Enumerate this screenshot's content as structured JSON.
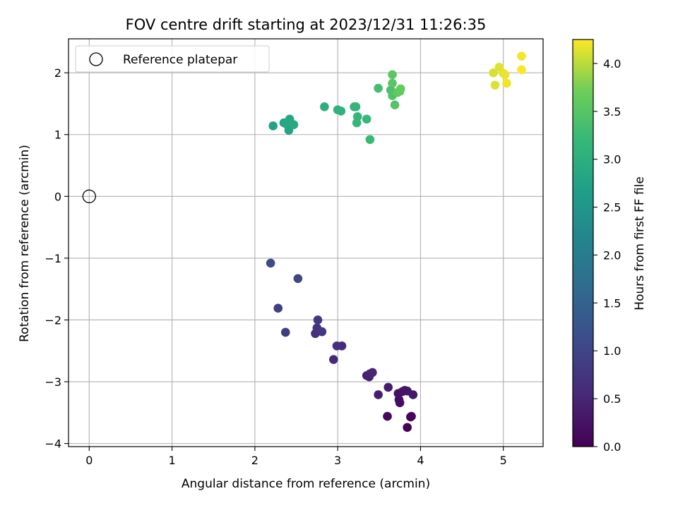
{
  "chart_data": {
    "type": "scatter",
    "title": "FOV centre drift starting at 2023/12/31 11:26:35",
    "xlabel": "Angular distance from reference (arcmin)",
    "ylabel": "Rotation from reference (arcmin)",
    "xlim": [
      -0.25,
      5.48
    ],
    "ylim": [
      -4.05,
      2.55
    ],
    "xticks": [
      0,
      1,
      2,
      3,
      4,
      5
    ],
    "xtick_labels": [
      "0",
      "1",
      "2",
      "3",
      "4",
      "5"
    ],
    "yticks": [
      -4,
      -3,
      -2,
      -1,
      0,
      1,
      2
    ],
    "ytick_labels": [
      "−4",
      "−3",
      "−2",
      "−1",
      "0",
      "1",
      "2"
    ],
    "grid": true,
    "legend": {
      "location": "top-left",
      "entries": [
        "Reference platepar"
      ]
    },
    "reference_point": {
      "x": 0,
      "y": 0,
      "marker": "hollow-circle",
      "color": "#000000"
    },
    "colorbar": {
      "label": "Hours from first FF file",
      "range": [
        0.0,
        4.25
      ],
      "ticks": [
        0.0,
        0.5,
        1.0,
        1.5,
        2.0,
        2.5,
        3.0,
        3.5,
        4.0
      ],
      "tick_labels": [
        "0.0",
        "0.5",
        "1.0",
        "1.5",
        "2.0",
        "2.5",
        "3.0",
        "3.5",
        "4.0"
      ],
      "colormap": "viridis"
    },
    "points": [
      {
        "x": 3.84,
        "y": -3.74,
        "t": 0.02
      },
      {
        "x": 3.88,
        "y": -3.57,
        "t": 0.05
      },
      {
        "x": 3.89,
        "y": -3.56,
        "t": 0.08
      },
      {
        "x": 3.6,
        "y": -3.56,
        "t": 0.11
      },
      {
        "x": 3.75,
        "y": -3.34,
        "t": 0.14
      },
      {
        "x": 3.74,
        "y": -3.29,
        "t": 0.17
      },
      {
        "x": 3.73,
        "y": -3.19,
        "t": 0.2
      },
      {
        "x": 3.78,
        "y": -3.16,
        "t": 0.23
      },
      {
        "x": 3.81,
        "y": -3.14,
        "t": 0.26
      },
      {
        "x": 3.84,
        "y": -3.15,
        "t": 0.29
      },
      {
        "x": 3.91,
        "y": -3.21,
        "t": 0.32
      },
      {
        "x": 3.61,
        "y": -3.09,
        "t": 0.35
      },
      {
        "x": 3.49,
        "y": -3.21,
        "t": 0.38
      },
      {
        "x": 3.35,
        "y": -2.9,
        "t": 0.41
      },
      {
        "x": 3.38,
        "y": -2.92,
        "t": 0.44
      },
      {
        "x": 3.39,
        "y": -2.87,
        "t": 0.47
      },
      {
        "x": 3.42,
        "y": -2.85,
        "t": 0.5
      },
      {
        "x": 2.95,
        "y": -2.64,
        "t": 0.55
      },
      {
        "x": 3.05,
        "y": -2.42,
        "t": 0.6
      },
      {
        "x": 2.99,
        "y": -2.42,
        "t": 0.64
      },
      {
        "x": 2.73,
        "y": -2.22,
        "t": 0.68
      },
      {
        "x": 2.75,
        "y": -2.13,
        "t": 0.72
      },
      {
        "x": 2.81,
        "y": -2.19,
        "t": 0.76
      },
      {
        "x": 2.76,
        "y": -2.0,
        "t": 0.8
      },
      {
        "x": 2.37,
        "y": -2.2,
        "t": 0.85
      },
      {
        "x": 2.28,
        "y": -1.81,
        "t": 0.9
      },
      {
        "x": 2.52,
        "y": -1.33,
        "t": 1.0
      },
      {
        "x": 2.19,
        "y": -1.08,
        "t": 1.1
      },
      {
        "x": 2.22,
        "y": 1.14,
        "t": 2.75
      },
      {
        "x": 2.41,
        "y": 1.07,
        "t": 2.78
      },
      {
        "x": 2.35,
        "y": 1.19,
        "t": 2.8
      },
      {
        "x": 2.38,
        "y": 1.17,
        "t": 2.82
      },
      {
        "x": 2.4,
        "y": 1.2,
        "t": 2.84
      },
      {
        "x": 2.42,
        "y": 1.25,
        "t": 2.86
      },
      {
        "x": 2.47,
        "y": 1.16,
        "t": 2.88
      },
      {
        "x": 2.84,
        "y": 1.45,
        "t": 3.0
      },
      {
        "x": 3.0,
        "y": 1.4,
        "t": 3.05
      },
      {
        "x": 3.04,
        "y": 1.38,
        "t": 3.08
      },
      {
        "x": 3.2,
        "y": 1.45,
        "t": 3.12
      },
      {
        "x": 3.22,
        "y": 1.45,
        "t": 3.14
      },
      {
        "x": 3.24,
        "y": 1.29,
        "t": 3.16
      },
      {
        "x": 3.23,
        "y": 1.19,
        "t": 3.18
      },
      {
        "x": 3.35,
        "y": 1.25,
        "t": 3.2
      },
      {
        "x": 3.39,
        "y": 0.92,
        "t": 3.22
      },
      {
        "x": 3.49,
        "y": 1.75,
        "t": 3.35
      },
      {
        "x": 3.64,
        "y": 1.72,
        "t": 3.4
      },
      {
        "x": 3.66,
        "y": 1.63,
        "t": 3.45
      },
      {
        "x": 3.69,
        "y": 1.48,
        "t": 3.48
      },
      {
        "x": 3.66,
        "y": 1.83,
        "t": 3.52
      },
      {
        "x": 3.66,
        "y": 1.97,
        "t": 3.55
      },
      {
        "x": 3.72,
        "y": 1.68,
        "t": 3.58
      },
      {
        "x": 3.75,
        "y": 1.7,
        "t": 3.6
      },
      {
        "x": 3.76,
        "y": 1.74,
        "t": 3.62
      },
      {
        "x": 4.88,
        "y": 2.0,
        "t": 4.1
      },
      {
        "x": 4.9,
        "y": 1.8,
        "t": 4.12
      },
      {
        "x": 4.95,
        "y": 2.09,
        "t": 4.14
      },
      {
        "x": 5.0,
        "y": 1.99,
        "t": 4.16
      },
      {
        "x": 5.02,
        "y": 1.97,
        "t": 4.18
      },
      {
        "x": 5.04,
        "y": 1.83,
        "t": 4.2
      },
      {
        "x": 5.22,
        "y": 2.27,
        "t": 4.22
      },
      {
        "x": 5.22,
        "y": 2.05,
        "t": 4.24
      }
    ]
  }
}
